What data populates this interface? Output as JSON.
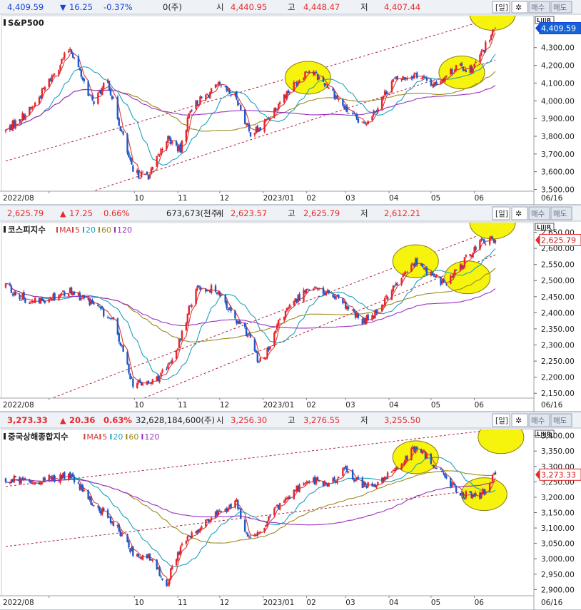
{
  "panels": [
    {
      "index_name": "S&P500",
      "header": {
        "price": "4,409.59",
        "change_symbol": "▼",
        "change": "16.25",
        "change_pct": "-0.37%",
        "volume": "0(주)",
        "open_label": "시",
        "open": "4,440.95",
        "high_label": "고",
        "high": "4,448.47",
        "low_label": "저",
        "low": "4,407.44",
        "period_label": "일",
        "buy_label": "매수",
        "sell_label": "매도",
        "direction": "down"
      },
      "ma_legend": [],
      "lir_label": "L|I|R",
      "x_labels": [
        "2022/08",
        "10",
        "11",
        "12",
        "2023/01",
        "02",
        "03",
        "04",
        "05",
        "06"
      ],
      "date_tag": "06/16",
      "y_ticks": [
        "4,300.00",
        "4,200.00",
        "4,100.00",
        "4,000.00",
        "3,900.00",
        "3,800.00",
        "3,700.00",
        "3,600.00",
        "3,500.00"
      ],
      "last_price_tag": "4,409.59",
      "chart_data": {
        "type": "candlestick",
        "x_range": [
          "2022-07-01",
          "2023-06-16"
        ],
        "ylim": [
          3490,
          4480
        ],
        "close_path": [
          [
            "2022-07-01",
            3830
          ],
          [
            "2022-07-20",
            3960
          ],
          [
            "2022-08-16",
            4300
          ],
          [
            "2022-09-01",
            3990
          ],
          [
            "2022-09-12",
            4110
          ],
          [
            "2022-09-30",
            3590
          ],
          [
            "2022-10-12",
            3580
          ],
          [
            "2022-10-24",
            3790
          ],
          [
            "2022-11-03",
            3720
          ],
          [
            "2022-11-10",
            3960
          ],
          [
            "2022-11-30",
            4080
          ],
          [
            "2022-12-13",
            4020
          ],
          [
            "2022-12-22",
            3820
          ],
          [
            "2022-12-30",
            3840
          ],
          [
            "2023-01-13",
            4000
          ],
          [
            "2023-02-02",
            4180
          ],
          [
            "2023-02-17",
            4080
          ],
          [
            "2023-03-01",
            3950
          ],
          [
            "2023-03-13",
            3860
          ],
          [
            "2023-03-24",
            3970
          ],
          [
            "2023-04-03",
            4110
          ],
          [
            "2023-04-20",
            4150
          ],
          [
            "2023-05-03",
            4090
          ],
          [
            "2023-05-19",
            4190
          ],
          [
            "2023-05-31",
            4180
          ],
          [
            "2023-06-16",
            4409.59
          ]
        ],
        "ma_colors": [
          "#d04040",
          "#20a0c0",
          "#9c8a20",
          "#9a30c0"
        ],
        "trend_channels": [
          [
            [
              "2022-07-01",
              3660
            ],
            [
              "2023-06-16",
              4470
            ]
          ],
          [
            [
              "2022-07-01",
              3330
            ],
            [
              "2023-06-16",
              4230
            ]
          ]
        ],
        "highlights": [
          [
            "2023-02-02",
            4130
          ],
          [
            "2023-05-23",
            4160
          ],
          [
            "2023-06-14",
            4490
          ]
        ]
      }
    },
    {
      "index_name": "코스피지수",
      "header": {
        "price": "2,625.79",
        "change_symbol": "▲",
        "change": "17.25",
        "change_pct": "0.66%",
        "volume": "673,673(천주)",
        "open_label": "시",
        "open": "2,623.57",
        "high_label": "고",
        "high": "2,625.79",
        "low_label": "저",
        "low": "2,612.21",
        "period_label": "일",
        "buy_label": "매수",
        "sell_label": "매도",
        "direction": "up"
      },
      "ma_legend": [
        {
          "label": "MA",
          "color": "#d04040"
        },
        {
          "label": "5",
          "color": "#d04040"
        },
        {
          "label": "20",
          "color": "#20a0c0"
        },
        {
          "label": "60",
          "color": "#9c8a20"
        },
        {
          "label": "120",
          "color": "#9a30c0"
        }
      ],
      "lir_label": "L|I|R",
      "x_labels": [
        "2022/08",
        "10",
        "11",
        "12",
        "2023/01",
        "02",
        "03",
        "04",
        "05",
        "06"
      ],
      "date_tag": "06/16",
      "y_ticks": [
        "2,650.00",
        "2,600.00",
        "2,550.00",
        "2,500.00",
        "2,450.00",
        "2,400.00",
        "2,350.00",
        "2,300.00",
        "2,250.00",
        "2,200.00",
        "2,150.00"
      ],
      "last_price_tag": "2,625.79",
      "chart_data": {
        "type": "candlestick",
        "x_range": [
          "2022-07-01",
          "2023-06-16"
        ],
        "ylim": [
          2135,
          2680
        ],
        "close_path": [
          [
            "2022-07-01",
            2480
          ],
          [
            "2022-07-20",
            2430
          ],
          [
            "2022-08-16",
            2470
          ],
          [
            "2022-09-01",
            2430
          ],
          [
            "2022-09-16",
            2370
          ],
          [
            "2022-09-30",
            2180
          ],
          [
            "2022-10-12",
            2180
          ],
          [
            "2022-10-24",
            2220
          ],
          [
            "2022-11-03",
            2320
          ],
          [
            "2022-11-14",
            2480
          ],
          [
            "2022-11-30",
            2470
          ],
          [
            "2022-12-13",
            2370
          ],
          [
            "2022-12-22",
            2330
          ],
          [
            "2022-12-29",
            2240
          ],
          [
            "2023-01-06",
            2290
          ],
          [
            "2023-01-13",
            2380
          ],
          [
            "2023-02-02",
            2480
          ],
          [
            "2023-02-17",
            2460
          ],
          [
            "2023-03-01",
            2420
          ],
          [
            "2023-03-13",
            2370
          ],
          [
            "2023-03-24",
            2410
          ],
          [
            "2023-04-03",
            2470
          ],
          [
            "2023-04-20",
            2560
          ],
          [
            "2023-05-03",
            2510
          ],
          [
            "2023-05-12",
            2490
          ],
          [
            "2023-05-23",
            2550
          ],
          [
            "2023-06-05",
            2620
          ],
          [
            "2023-06-16",
            2625.79
          ]
        ],
        "ma_colors": [
          "#d04040",
          "#20a0c0",
          "#9c8a20",
          "#9a30c0"
        ],
        "trend_channels": [
          [
            [
              "2022-07-01",
              2080
            ],
            [
              "2023-06-16",
              2660
            ]
          ],
          [
            [
              "2022-07-01",
              1960
            ],
            [
              "2023-06-16",
              2580
            ]
          ]
        ],
        "highlights": [
          [
            "2023-04-20",
            2560
          ],
          [
            "2023-05-27",
            2510
          ],
          [
            "2023-06-14",
            2680
          ]
        ]
      }
    },
    {
      "index_name": "중국상해종합지수",
      "header": {
        "price": "3,273.33",
        "change_symbol": "▲",
        "change": "20.36",
        "change_pct": "0.63%",
        "volume": "32,628,184,600(주)",
        "open_label": "시",
        "open": "3,256.30",
        "high_label": "고",
        "high": "3,276.55",
        "low_label": "저",
        "low": "3,255.50",
        "period_label": "일",
        "buy_label": "매수",
        "sell_label": "매도",
        "direction": "up"
      },
      "ma_legend": [
        {
          "label": "MA",
          "color": "#d04040"
        },
        {
          "label": "5",
          "color": "#d04040"
        },
        {
          "label": "20",
          "color": "#20a0c0"
        },
        {
          "label": "60",
          "color": "#9c8a20"
        },
        {
          "label": "120",
          "color": "#9a30c0"
        }
      ],
      "lir_label": "L|I|R",
      "x_labels": [
        "2022/08",
        "10",
        "11",
        "12",
        "2023/01",
        "02",
        "03",
        "04",
        "05",
        "06"
      ],
      "date_tag": "06/16",
      "y_ticks": [
        "3,400.00",
        "3,350.00",
        "3,300.00",
        "3,250.00",
        "3,200.00",
        "3,150.00",
        "3,100.00",
        "3,050.00",
        "3,000.00",
        "2,950.00",
        "2,900.00"
      ],
      "last_price_tag": "3,273.33",
      "chart_data": {
        "type": "candlestick",
        "x_range": [
          "2022-07-01",
          "2023-06-16"
        ],
        "ylim": [
          2880,
          3420
        ],
        "close_path": [
          [
            "2022-07-01",
            3260
          ],
          [
            "2022-07-20",
            3250
          ],
          [
            "2022-08-16",
            3270
          ],
          [
            "2022-09-01",
            3180
          ],
          [
            "2022-09-16",
            3120
          ],
          [
            "2022-09-30",
            3020
          ],
          [
            "2022-10-12",
            3000
          ],
          [
            "2022-10-24",
            2920
          ],
          [
            "2022-11-03",
            3040
          ],
          [
            "2022-11-14",
            3090
          ],
          [
            "2022-11-30",
            3150
          ],
          [
            "2022-12-13",
            3180
          ],
          [
            "2022-12-22",
            3060
          ],
          [
            "2022-12-29",
            3080
          ],
          [
            "2023-01-13",
            3180
          ],
          [
            "2023-02-02",
            3260
          ],
          [
            "2023-02-17",
            3240
          ],
          [
            "2023-03-01",
            3290
          ],
          [
            "2023-03-13",
            3240
          ],
          [
            "2023-03-24",
            3240
          ],
          [
            "2023-04-03",
            3280
          ],
          [
            "2023-04-20",
            3360
          ],
          [
            "2023-05-03",
            3310
          ],
          [
            "2023-05-12",
            3260
          ],
          [
            "2023-05-23",
            3210
          ],
          [
            "2023-06-05",
            3200
          ],
          [
            "2023-06-16",
            3273.33
          ]
        ],
        "ma_colors": [
          "#d04040",
          "#20a0c0",
          "#9c8a20",
          "#9a30c0"
        ],
        "trend_channels": [
          [
            [
              "2022-07-01",
              3235
            ],
            [
              "2023-06-16",
              3420
            ]
          ],
          [
            [
              "2022-07-01",
              3040
            ],
            [
              "2023-06-16",
              3230
            ]
          ]
        ],
        "highlights": [
          [
            "2023-04-20",
            3330
          ],
          [
            "2023-06-08",
            3210
          ],
          [
            "2023-06-20",
            3395
          ]
        ]
      }
    }
  ]
}
